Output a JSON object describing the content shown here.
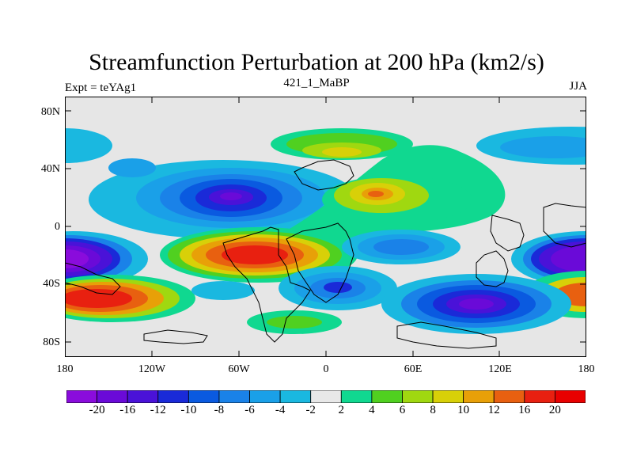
{
  "title": "Streamfunction Perturbation at 200 hPa (km2/s)",
  "left_label": "Expt = teYAg1",
  "center_label": "421_1_MaBP",
  "right_label": "JJA",
  "y_ticks": [
    "80N",
    "40N",
    "0",
    "40S",
    "80S"
  ],
  "x_ticks": [
    "180",
    "120W",
    "60W",
    "0",
    "60E",
    "120E",
    "180"
  ],
  "colorbar": {
    "labels": [
      "-20",
      "-16",
      "-12",
      "-10",
      "-8",
      "-6",
      "-4",
      "-2",
      "2",
      "4",
      "6",
      "8",
      "10",
      "12",
      "16",
      "20"
    ],
    "colors": [
      "#8a0cdc",
      "#6a0ad8",
      "#4a12d8",
      "#1a2ad8",
      "#0a5ae0",
      "#1a82e8",
      "#1aa0e8",
      "#1ab8e0",
      "#e8e8e8",
      "#10d890",
      "#50d020",
      "#a0d810",
      "#d8d008",
      "#e8a008",
      "#e86010",
      "#e82010",
      "#e80000"
    ]
  }
}
